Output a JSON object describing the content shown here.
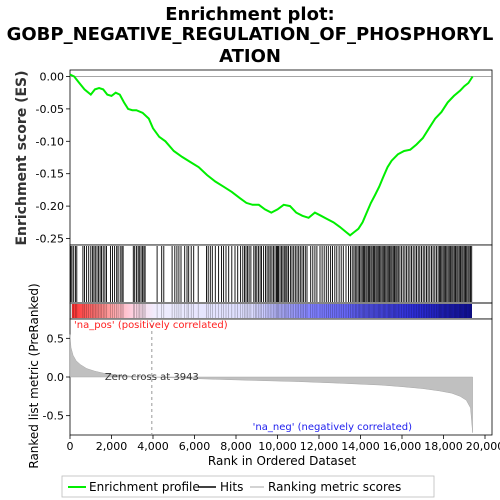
{
  "chart_data": {
    "type": "line",
    "title_lines": [
      "Enrichment plot:",
      "GOBP_NEGATIVE_REGULATION_OF_PHOSPHORYL",
      "ATION"
    ],
    "xlabel": "Rank in Ordered Dataset",
    "xlim": [
      0,
      20000
    ],
    "x_ticks": [
      0,
      2000,
      4000,
      6000,
      8000,
      10000,
      12000,
      14000,
      16000,
      18000,
      20000
    ],
    "x_tick_labels": [
      "0",
      "2,000",
      "4,000",
      "6,000",
      "8,000",
      "10,000",
      "12,000",
      "14,000",
      "16,000",
      "18,000",
      "20,000"
    ],
    "n_genes": 19400,
    "es_panel": {
      "ylabel": "Enrichment score (ES)",
      "ylim": [
        -0.26,
        0.01
      ],
      "y_ticks": [
        0.0,
        -0.05,
        -0.1,
        -0.15,
        -0.2,
        -0.25
      ],
      "y_tick_labels": [
        "0.00",
        "-0.05",
        "-0.10",
        "-0.15",
        "-0.20",
        "-0.25"
      ],
      "series": [
        {
          "name": "Enrichment profile",
          "color": "#00ee00",
          "x": [
            0,
            200,
            400,
            700,
            1000,
            1200,
            1400,
            1600,
            1800,
            2000,
            2200,
            2400,
            2600,
            2800,
            3000,
            3200,
            3500,
            3800,
            4000,
            4300,
            4600,
            5000,
            5400,
            5800,
            6200,
            6600,
            7000,
            7400,
            7800,
            8200,
            8500,
            8800,
            9100,
            9400,
            9700,
            10000,
            10300,
            10600,
            10900,
            11200,
            11500,
            11800,
            12100,
            12400,
            12700,
            13000,
            13300,
            13500,
            13700,
            13900,
            14100,
            14300,
            14500,
            14700,
            14900,
            15100,
            15300,
            15500,
            15800,
            16100,
            16400,
            16700,
            17000,
            17300,
            17600,
            17900,
            18200,
            18500,
            18800,
            19000,
            19200,
            19400
          ],
          "values": [
            0.003,
            0.0,
            -0.008,
            -0.02,
            -0.028,
            -0.02,
            -0.018,
            -0.02,
            -0.028,
            -0.03,
            -0.025,
            -0.028,
            -0.04,
            -0.05,
            -0.052,
            -0.052,
            -0.056,
            -0.065,
            -0.08,
            -0.093,
            -0.1,
            -0.115,
            -0.124,
            -0.132,
            -0.14,
            -0.152,
            -0.162,
            -0.17,
            -0.178,
            -0.188,
            -0.195,
            -0.198,
            -0.198,
            -0.205,
            -0.21,
            -0.205,
            -0.198,
            -0.2,
            -0.21,
            -0.215,
            -0.218,
            -0.21,
            -0.215,
            -0.22,
            -0.225,
            -0.232,
            -0.24,
            -0.245,
            -0.24,
            -0.235,
            -0.225,
            -0.21,
            -0.195,
            -0.183,
            -0.17,
            -0.155,
            -0.14,
            -0.13,
            -0.12,
            -0.115,
            -0.113,
            -0.105,
            -0.095,
            -0.08,
            -0.065,
            -0.055,
            -0.04,
            -0.03,
            -0.022,
            -0.015,
            -0.01,
            0.0
          ]
        }
      ]
    },
    "hits_label": "Hits",
    "hits_color": "#000000",
    "hit_ranks": [
      40,
      95,
      180,
      260,
      330,
      620,
      700,
      800,
      900,
      1000,
      1080,
      1150,
      1220,
      1300,
      1380,
      1450,
      1520,
      1600,
      1680,
      1760,
      1950,
      2050,
      2150,
      2250,
      2320,
      2420,
      2500,
      2560,
      3050,
      3120,
      3200,
      3280,
      3340,
      3420,
      3490,
      3560,
      3620,
      4200,
      4420,
      4520,
      4920,
      5050,
      5150,
      5250,
      5350,
      5530,
      5640,
      5720,
      5840,
      5960,
      6180,
      6580,
      6660,
      6760,
      6860,
      7000,
      7160,
      7300,
      7400,
      7520,
      7650,
      7800,
      7950,
      8080,
      8220,
      8330,
      8410,
      8480,
      8560,
      8630,
      8720,
      8860,
      8930,
      9000,
      9080,
      9160,
      9230,
      9330,
      9420,
      9500,
      9580,
      9650,
      9730,
      9800,
      9880,
      9950,
      10000,
      10050,
      10120,
      10190,
      10260,
      10330,
      10400,
      10460,
      10530,
      10620,
      10700,
      10780,
      10860,
      10940,
      11020,
      11100,
      11180,
      11260,
      11340,
      11420,
      11600,
      11700,
      11800,
      11900,
      12050,
      12150,
      12250,
      12350,
      12450,
      12560,
      12650,
      12760,
      12860,
      12970,
      13070,
      13170,
      13300,
      13420,
      13520,
      13600,
      13680,
      13750,
      13820,
      13890,
      13950,
      14020,
      14080,
      14140,
      14200,
      14260,
      14320,
      14380,
      14440,
      14500,
      14560,
      14620,
      14680,
      14740,
      14800,
      14860,
      14920,
      14980,
      15040,
      15100,
      15160,
      15220,
      15280,
      15340,
      15400,
      15460,
      15520,
      15580,
      15640,
      15700,
      15760,
      15820,
      15900,
      15980,
      16060,
      16140,
      16220,
      16300,
      16380,
      16460,
      16540,
      16620,
      16700,
      16780,
      16860,
      16940,
      17020,
      17100,
      17180,
      17260,
      17340,
      17420,
      17500,
      17580,
      17660,
      17740,
      17800,
      17860,
      17920,
      17980,
      18040,
      18100,
      18160,
      18220,
      18280,
      18340,
      18400,
      18460,
      18520,
      18580,
      18640,
      18700,
      18760,
      18820,
      18880,
      18940,
      19000,
      19060,
      19120,
      19180,
      19240,
      19300,
      19360
    ],
    "ranked_metric": {
      "name": "Ranking metric scores",
      "color": "#c0c0c0",
      "ylabel": "Ranked list metric (PreRanked)",
      "ylim": [
        -0.75,
        0.75
      ],
      "y_ticks": [
        0.5,
        0.0,
        -0.5
      ],
      "y_tick_labels": [
        "0.5",
        "0.0",
        "-0.5"
      ],
      "x": [
        0,
        50,
        150,
        300,
        500,
        800,
        1200,
        1600,
        2000,
        2500,
        3000,
        3500,
        3943,
        5000,
        7000,
        9000,
        11000,
        13000,
        15000,
        16000,
        17000,
        17800,
        18400,
        18800,
        19100,
        19300,
        19400
      ],
      "values": [
        0.55,
        0.38,
        0.28,
        0.21,
        0.16,
        0.11,
        0.075,
        0.05,
        0.035,
        0.02,
        0.01,
        0.004,
        0.0,
        -0.012,
        -0.03,
        -0.045,
        -0.06,
        -0.08,
        -0.105,
        -0.125,
        -0.15,
        -0.18,
        -0.21,
        -0.25,
        -0.3,
        -0.4,
        -0.72
      ],
      "zero_cross": 3943,
      "zero_cross_label": "Zero cross at 3943",
      "pos_label": "'na_pos' (positively correlated)",
      "neg_label": "'na_neg' (negatively correlated)",
      "pos_color": "#ff0000",
      "neg_color": "#0000ff"
    },
    "legend": {
      "placement": "bottom",
      "entries": [
        {
          "name": "Enrichment profile",
          "color": "#00ee00"
        },
        {
          "name": "Hits",
          "color": "#000000"
        },
        {
          "name": "Ranking metric scores",
          "color": "#c0c0c0"
        }
      ]
    }
  }
}
